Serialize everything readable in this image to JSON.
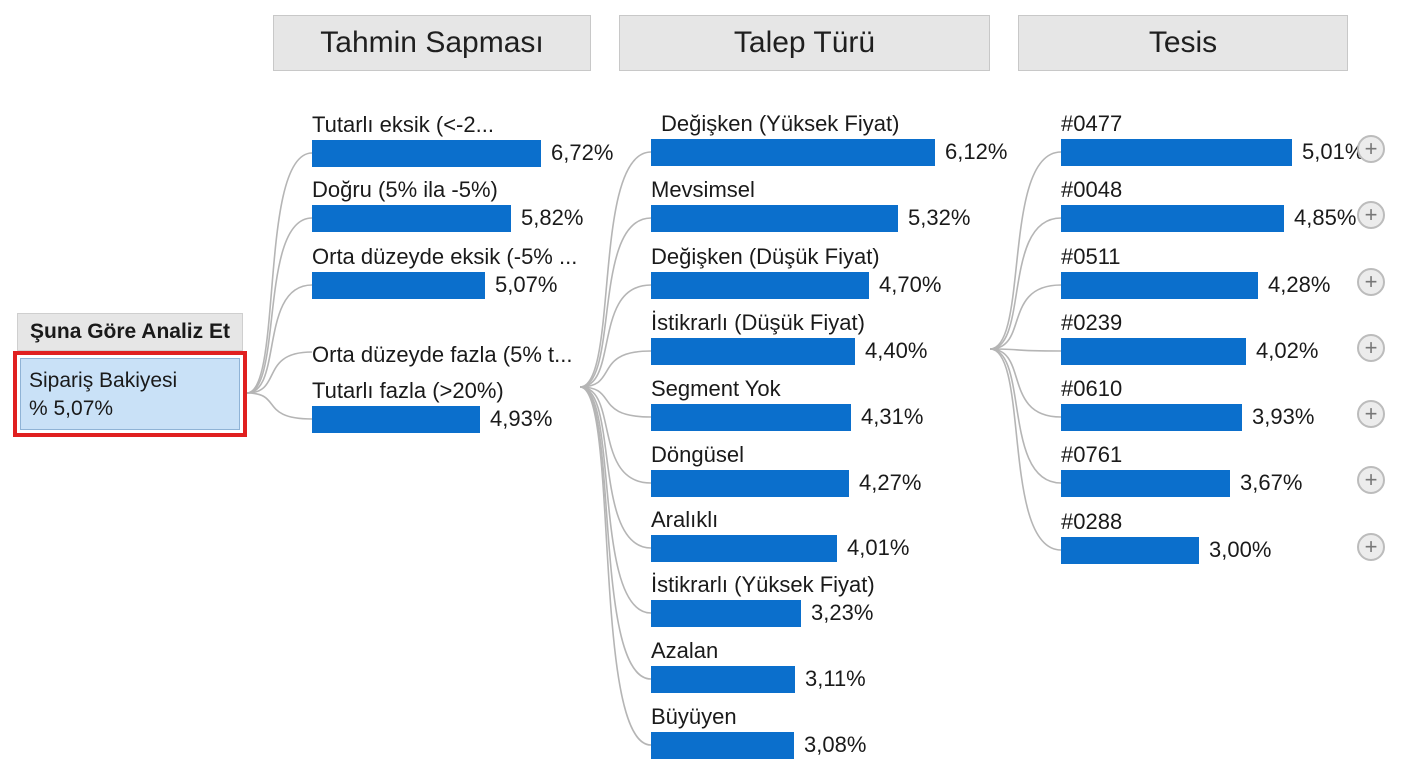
{
  "root": {
    "header": "Şuna Göre Analiz Et",
    "metric": "Sipariş Bakiyesi",
    "value": "% 5,07%"
  },
  "columns": [
    {
      "title": "Tahmin Sapması",
      "nodes": [
        {
          "label": "Tutarlı eksik (<-2...",
          "value": "6,72%",
          "fraction": 0.0672
        },
        {
          "label": "Doğru (5% ila -5%)",
          "value": "5,82%",
          "fraction": 0.0582
        },
        {
          "label": "Orta düzeyde eksik (-5% ...",
          "value": "5,07%",
          "fraction": 0.0507
        },
        {
          "label": "Orta düzeyde fazla (5% t...",
          "value": "",
          "fraction": null
        },
        {
          "label": "Tutarlı fazla (>20%)",
          "value": "4,93%",
          "fraction": 0.0493
        }
      ]
    },
    {
      "title": "Talep Türü",
      "nodes": [
        {
          "label": "Değişken (Yüksek Fiyat)",
          "value": "6,12%",
          "fraction": 0.0612
        },
        {
          "label": "Mevsimsel",
          "value": "5,32%",
          "fraction": 0.0532
        },
        {
          "label": "Değişken (Düşük Fiyat)",
          "value": "4,70%",
          "fraction": 0.047
        },
        {
          "label": "İstikrarlı (Düşük Fiyat)",
          "value": "4,40%",
          "fraction": 0.044
        },
        {
          "label": "Segment Yok",
          "value": "4,31%",
          "fraction": 0.0431
        },
        {
          "label": "Döngüsel",
          "value": "4,27%",
          "fraction": 0.0427
        },
        {
          "label": "Aralıklı",
          "value": "4,01%",
          "fraction": 0.0401
        },
        {
          "label": "İstikrarlı (Yüksek Fiyat)",
          "value": "3,23%",
          "fraction": 0.0323
        },
        {
          "label": "Azalan",
          "value": "3,11%",
          "fraction": 0.0311
        },
        {
          "label": "Büyüyen",
          "value": "3,08%",
          "fraction": 0.0308
        }
      ]
    },
    {
      "title": "Tesis",
      "nodes": [
        {
          "label": "#0477",
          "value": "5,01%",
          "fraction": 0.0501,
          "expand": "+"
        },
        {
          "label": "#0048",
          "value": "4,85%",
          "fraction": 0.0485,
          "expand": "+"
        },
        {
          "label": "#0511",
          "value": "4,28%",
          "fraction": 0.0428,
          "expand": "+"
        },
        {
          "label": "#0239",
          "value": "4,02%",
          "fraction": 0.0402,
          "expand": "+"
        },
        {
          "label": "#0610",
          "value": "3,93%",
          "fraction": 0.0393,
          "expand": "+"
        },
        {
          "label": "#0761",
          "value": "3,67%",
          "fraction": 0.0367,
          "expand": "+"
        },
        {
          "label": "#0288",
          "value": "3,00%",
          "fraction": 0.03,
          "expand": "+"
        }
      ]
    }
  ],
  "colors": {
    "bar": "#0b6fcc",
    "selected_border": "#e02020",
    "selected_fill": "#c9e1f7",
    "header_fill": "#e6e6e6",
    "connector": "#b5b5b5"
  }
}
